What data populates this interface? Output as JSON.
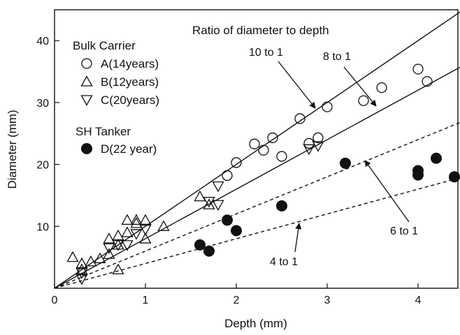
{
  "chart_data": {
    "type": "scatter",
    "title": "",
    "xlabel": "Depth (mm)",
    "ylabel": "Diameter (mm)",
    "xlim": [
      0,
      4.5
    ],
    "ylim": [
      0,
      45
    ],
    "xticks": [
      0,
      1,
      2,
      3,
      4
    ],
    "yticks": [
      10,
      20,
      30,
      40
    ],
    "xtick_labels": [
      "0",
      "1",
      "2",
      "3",
      "4"
    ],
    "ytick_labels": [
      "10",
      "20",
      "30",
      "40"
    ],
    "legend": {
      "placement": "top-left",
      "groups": [
        {
          "title": "Bulk Carrier",
          "entries": [
            {
              "marker": "circle-open",
              "label": "A(14years)"
            },
            {
              "marker": "triangle-up-open",
              "label": "B(12years)"
            },
            {
              "marker": "triangle-down-open",
              "label": "C(20years)"
            }
          ]
        },
        {
          "title": "SH Tanker",
          "entries": [
            {
              "marker": "circle-filled",
              "label": "D(22 year)"
            }
          ]
        }
      ]
    },
    "ratio_title": "Ratio of diameter to depth",
    "ratio_lines": [
      {
        "label": "10 to 1",
        "slope": 10,
        "style": "solid"
      },
      {
        "label": "8 to 1",
        "slope": 8,
        "style": "solid"
      },
      {
        "label": "6 to 1",
        "slope": 6,
        "style": "dashed"
      },
      {
        "label": "4 to 1",
        "slope": 4,
        "style": "dashed"
      }
    ],
    "series": [
      {
        "name": "A(14years)",
        "marker": "circle-open",
        "points": [
          [
            1.9,
            18.2
          ],
          [
            2.0,
            20.3
          ],
          [
            2.2,
            23.3
          ],
          [
            2.3,
            22.3
          ],
          [
            2.4,
            24.3
          ],
          [
            2.5,
            21.3
          ],
          [
            2.7,
            27.4
          ],
          [
            2.8,
            23.4
          ],
          [
            2.9,
            24.3
          ],
          [
            3.0,
            29.3
          ],
          [
            3.4,
            30.3
          ],
          [
            3.6,
            32.4
          ],
          [
            4.0,
            35.4
          ],
          [
            4.1,
            33.4
          ]
        ]
      },
      {
        "name": "B(12years)",
        "marker": "triangle-up-open",
        "points": [
          [
            0.2,
            5.0
          ],
          [
            0.3,
            4.0
          ],
          [
            0.3,
            3.0
          ],
          [
            0.4,
            4.3
          ],
          [
            0.5,
            4.8
          ],
          [
            0.6,
            5.5
          ],
          [
            0.6,
            8.0
          ],
          [
            0.7,
            8.5
          ],
          [
            0.7,
            7.0
          ],
          [
            0.7,
            3.0
          ],
          [
            0.8,
            9.0
          ],
          [
            0.8,
            11.0
          ],
          [
            0.9,
            10.5
          ],
          [
            0.9,
            11.0
          ],
          [
            1.0,
            8.0
          ],
          [
            1.0,
            11.0
          ],
          [
            1.2,
            10.0
          ],
          [
            1.6,
            14.8
          ],
          [
            1.7,
            13.5
          ]
        ]
      },
      {
        "name": "C(20years)",
        "marker": "triangle-down-open",
        "points": [
          [
            0.3,
            1.5
          ],
          [
            0.3,
            2.5
          ],
          [
            0.6,
            6.5
          ],
          [
            0.7,
            7.0
          ],
          [
            0.8,
            7.0
          ],
          [
            0.9,
            8.8
          ],
          [
            1.0,
            9.5
          ],
          [
            1.7,
            14.0
          ],
          [
            1.8,
            13.5
          ],
          [
            1.8,
            16.5
          ],
          [
            2.8,
            22.5
          ],
          [
            2.9,
            23.0
          ]
        ]
      },
      {
        "name": "D(22 year)",
        "marker": "circle-filled",
        "points": [
          [
            1.6,
            7.0
          ],
          [
            1.7,
            6.0
          ],
          [
            1.9,
            11.0
          ],
          [
            2.0,
            9.3
          ],
          [
            2.5,
            13.3
          ],
          [
            3.2,
            20.2
          ],
          [
            4.0,
            19.0
          ],
          [
            4.0,
            18.3
          ],
          [
            4.2,
            21.0
          ],
          [
            4.4,
            18.0
          ]
        ]
      }
    ]
  }
}
